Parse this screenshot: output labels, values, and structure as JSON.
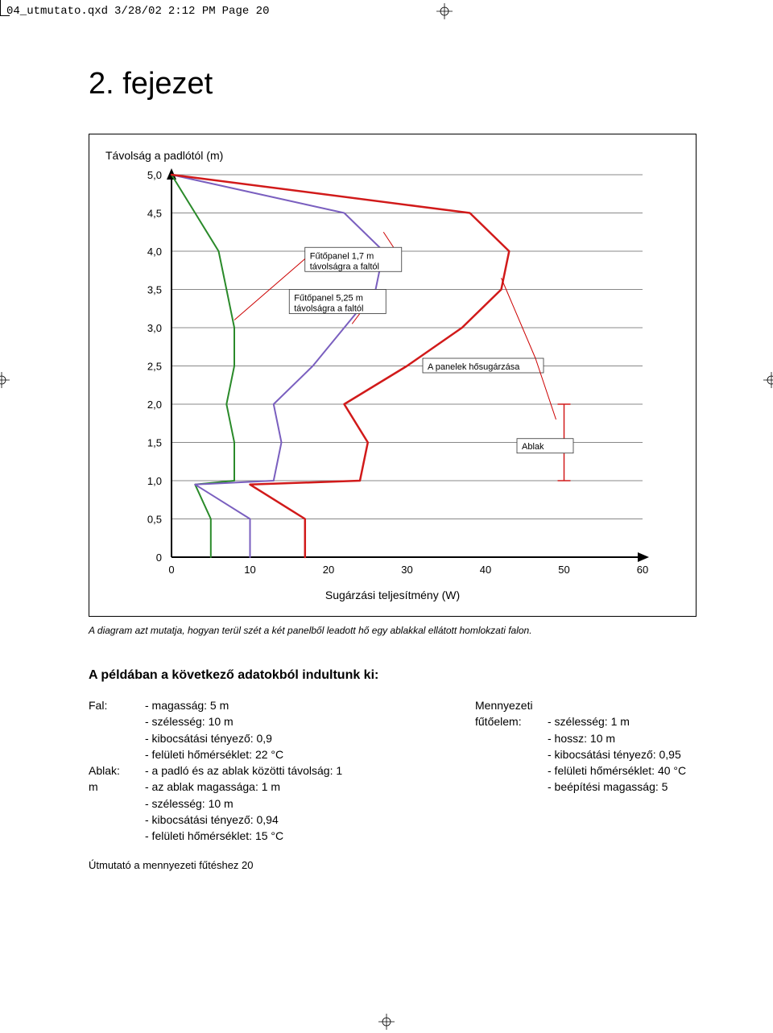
{
  "header": {
    "filename": "04_utmutato.qxd",
    "date": "3/28/02",
    "time": "2:12 PM",
    "page_label": "Page 20"
  },
  "chapter": {
    "title": "2. fejezet"
  },
  "chart": {
    "type": "line",
    "y_axis_label": "Távolság a padlótól (m)",
    "x_axis_label": "Sugárzási teljesítmény (W)",
    "xlim": [
      0,
      60
    ],
    "ylim": [
      0,
      5.0
    ],
    "x_ticks": [
      0,
      10,
      20,
      30,
      40,
      50,
      60
    ],
    "y_ticks": [
      0,
      0.5,
      1.0,
      1.5,
      2.0,
      2.5,
      3.0,
      3.5,
      4.0,
      4.5,
      5.0
    ],
    "y_tick_labels": [
      "0",
      "0,5",
      "1,0",
      "1,5",
      "2,0",
      "2,5",
      "3,0",
      "3,5",
      "4,0",
      "4,5",
      "5,0"
    ],
    "grid_color": "#888888",
    "background_color": "#ffffff",
    "series": [
      {
        "label": "Fűtőpanel 1,7 m távolságra a faltól",
        "color": "#2a8a2a",
        "width": 2,
        "points": [
          [
            5,
            0
          ],
          [
            5,
            0.5
          ],
          [
            3,
            0.95
          ],
          [
            8,
            1.0
          ],
          [
            8,
            1.5
          ],
          [
            7,
            2.0
          ],
          [
            8,
            2.5
          ],
          [
            8,
            3.0
          ],
          [
            7,
            3.5
          ],
          [
            6,
            4.0
          ],
          [
            3,
            4.5
          ],
          [
            0,
            5.0
          ]
        ]
      },
      {
        "label": "Fűtőpanel 5,25 m távolságra a faltól",
        "color": "#7a5fbf",
        "width": 2,
        "points": [
          [
            10,
            0
          ],
          [
            10,
            0.5
          ],
          [
            3,
            0.95
          ],
          [
            13,
            1.0
          ],
          [
            14,
            1.5
          ],
          [
            13,
            2.0
          ],
          [
            18,
            2.5
          ],
          [
            22,
            3.0
          ],
          [
            26,
            3.5
          ],
          [
            27,
            4.0
          ],
          [
            22,
            4.5
          ],
          [
            0,
            5.0
          ]
        ]
      },
      {
        "label": "A panelek hősugárzása",
        "color": "#d11a1a",
        "width": 2.5,
        "points": [
          [
            17,
            0
          ],
          [
            17,
            0.5
          ],
          [
            10,
            0.95
          ],
          [
            24,
            1.0
          ],
          [
            25,
            1.5
          ],
          [
            22,
            2.0
          ],
          [
            30,
            2.5
          ],
          [
            37,
            3.0
          ],
          [
            42,
            3.5
          ],
          [
            43,
            4.0
          ],
          [
            38,
            4.5
          ],
          [
            0,
            5.0
          ]
        ]
      }
    ],
    "window_marker": {
      "color": "#d11a1a",
      "x": 50,
      "y_from": 1.0,
      "y_to": 2.0,
      "label": "Ablak"
    },
    "callouts": {
      "c1": {
        "line1": "Fűtőpanel 1,7 m",
        "line2": "távolságra a faltól"
      },
      "c2": {
        "line1": "Fűtőpanel 5,25 m",
        "line2": "távolságra a faltól"
      },
      "c3": {
        "line1": "A panelek hősugárzása"
      },
      "c4": {
        "line1": "Ablak"
      }
    },
    "caption": "A diagram azt mutatja, hogyan terül szét a két panelből leadott hő egy ablakkal ellátott homlokzati falon."
  },
  "example": {
    "heading": "A példában a következő adatokból indultunk ki:",
    "left": {
      "fal_label": "Fal:",
      "fal_line1": "- magasság: 5 m",
      "fal_line2": "- szélesség: 10 m",
      "fal_line3": "- kibocsátási tényező: 0,9",
      "fal_line4": "- felületi hőmérséklet: 22 °C",
      "ablak_label": "Ablak:",
      "ablak_line1": "- a padló és az ablak közötti távolság: 1",
      "m_label": "m",
      "ablak_line2": "- az ablak magassága: 1 m",
      "ablak_line3": "- szélesség: 10 m",
      "ablak_line4": "- kibocsátási tényező: 0,94",
      "ablak_line5": "- felületi hőmérséklet: 15 °C"
    },
    "right": {
      "menny_label": "Mennyezeti",
      "futo_label": "fűtőelem:",
      "r_line1": "- szélesség: 1 m",
      "r_line2": "- hossz: 10 m",
      "r_line3": "- kibocsátási tényező: 0,95",
      "r_line4": "- felületi hőmérséklet: 40 °C",
      "r_line5": "- beépítési magasság: 5"
    }
  },
  "footer": {
    "text": "Útmutató a mennyezeti fűtéshez 20"
  }
}
